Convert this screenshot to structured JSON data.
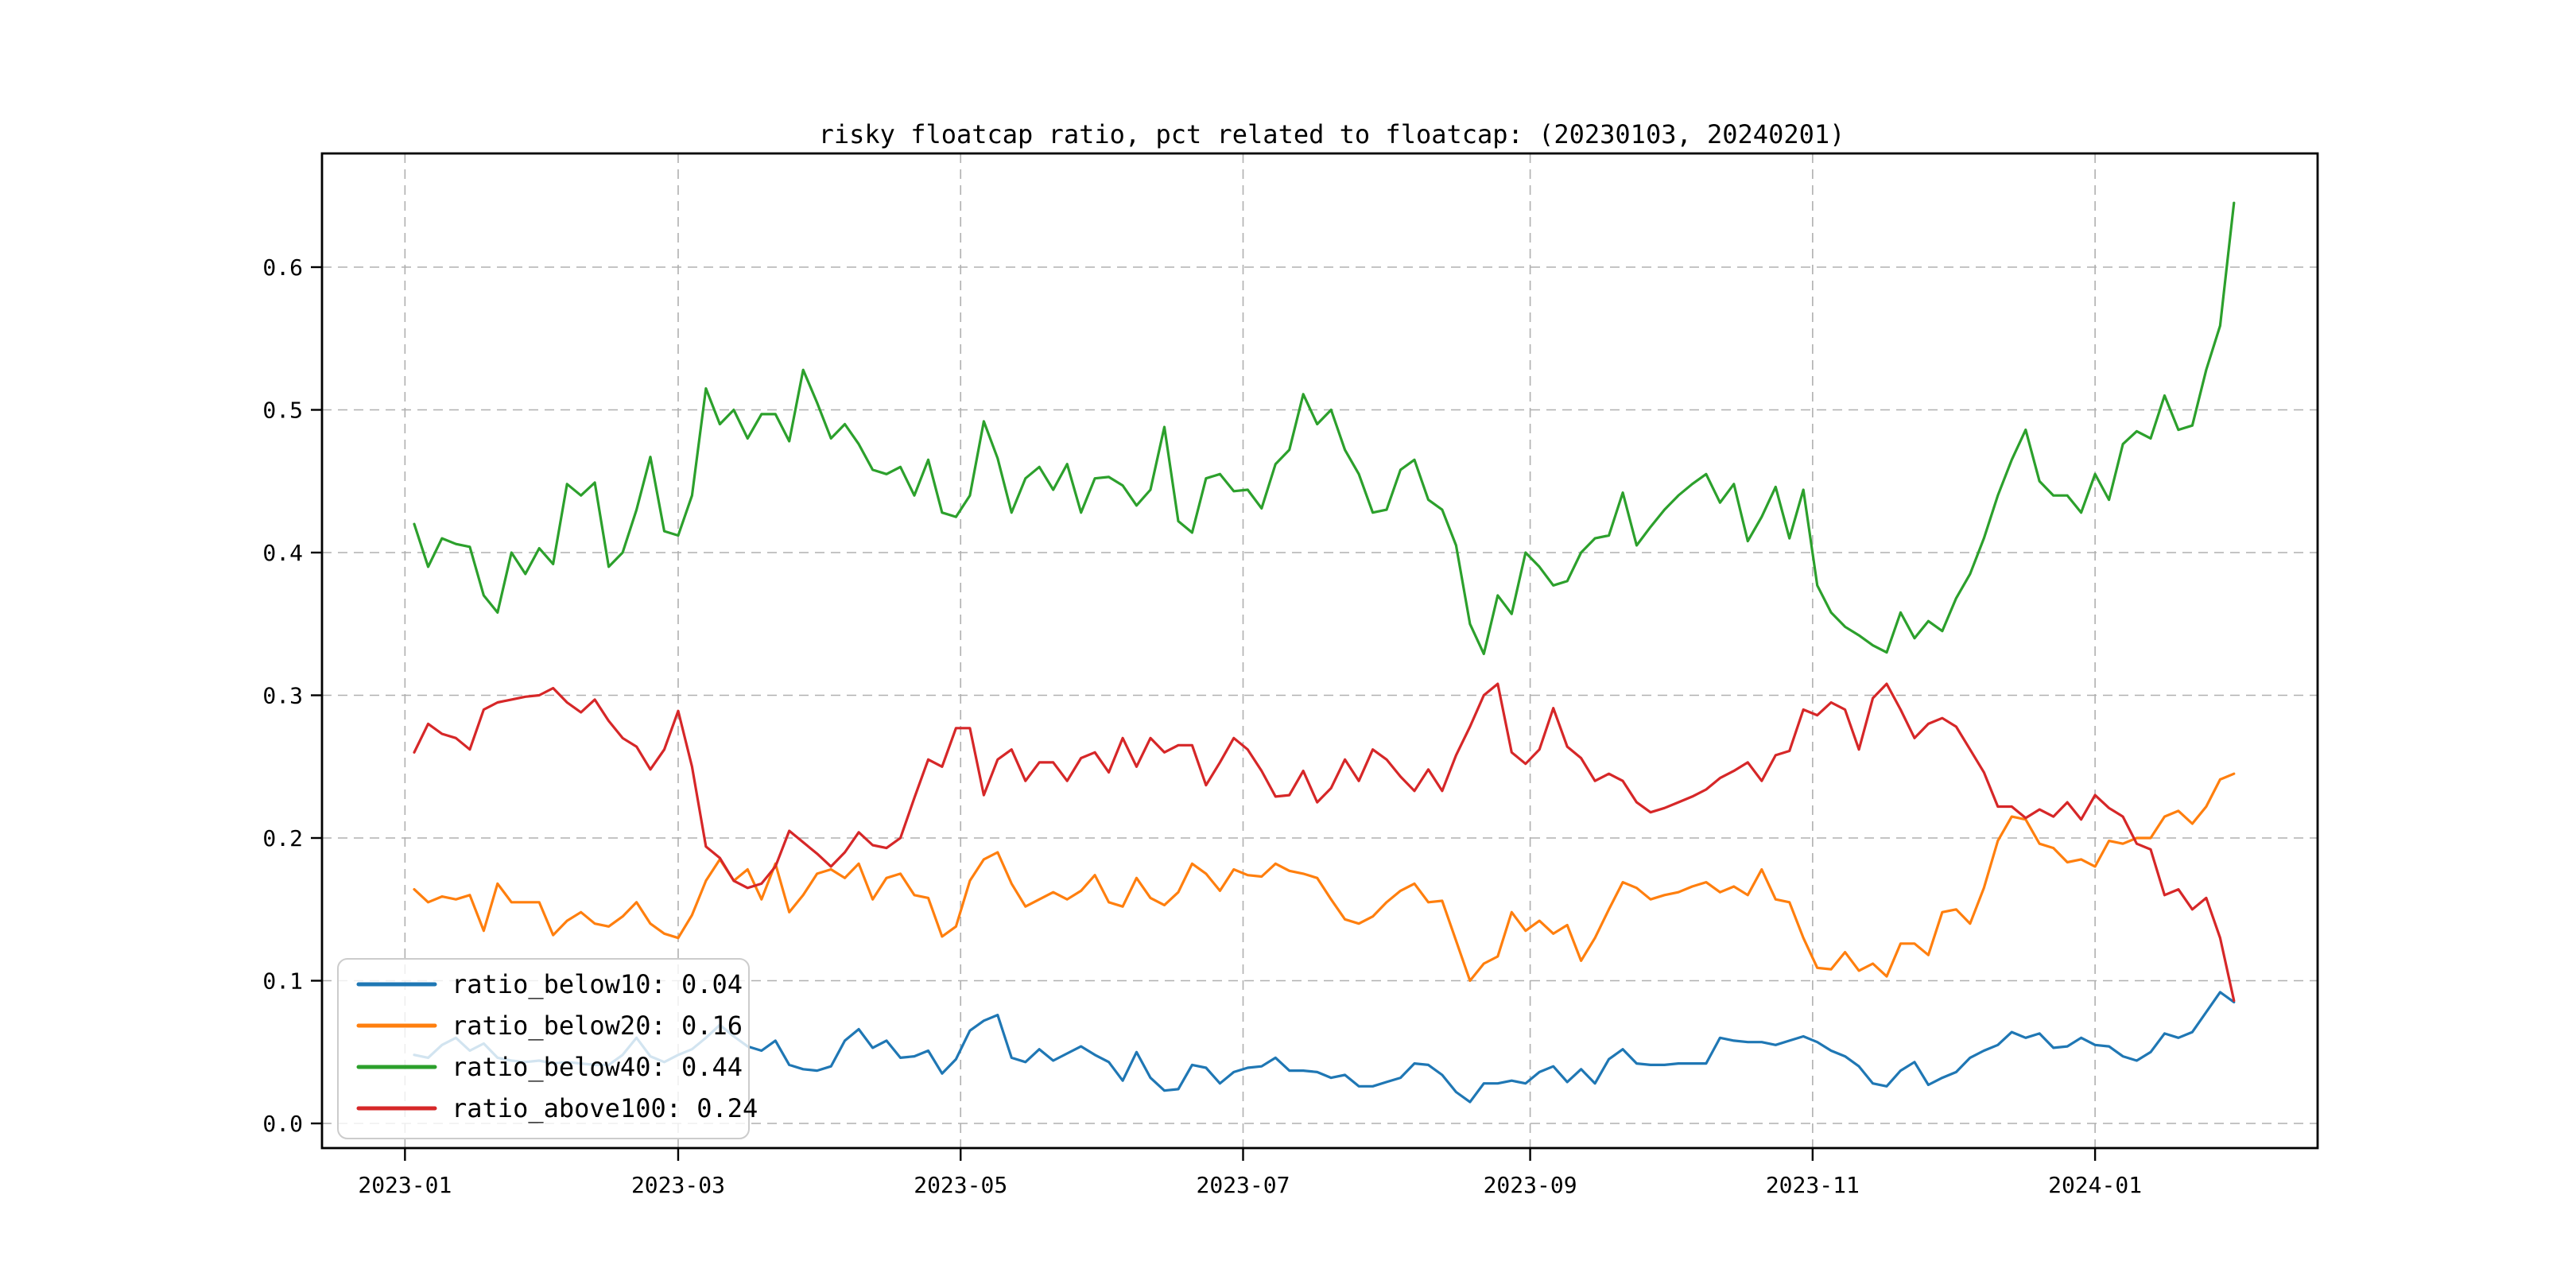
{
  "figure": {
    "background": "#ffffff"
  },
  "chart_data": {
    "type": "line",
    "title": "risky floatcap ratio, pct related to floatcap: (20230103, 20240201)",
    "grid": true,
    "grid_style": "dashed",
    "grid_color": "#b0b0b0",
    "legend_position": "lower left",
    "x_axis": {
      "start_date": "2023-01-03",
      "end_date": "2024-02-01",
      "sample_step_days": 3,
      "tick_labels": [
        "2023-01",
        "2023-03",
        "2023-05",
        "2023-07",
        "2023-09",
        "2023-11",
        "2024-01"
      ],
      "tick_day_offsets": [
        -2,
        57,
        118,
        179,
        241,
        302,
        363
      ]
    },
    "y_axis": {
      "tick_labels": [
        "0.0",
        "0.1",
        "0.2",
        "0.3",
        "0.4",
        "0.5",
        "0.6"
      ],
      "tick_values": [
        0.0,
        0.1,
        0.2,
        0.3,
        0.4,
        0.5,
        0.6
      ],
      "ylim": [
        -0.017,
        0.6797
      ]
    },
    "series": [
      {
        "name": "ratio_below10",
        "legend_label": "ratio_below10: 0.04",
        "color": "#1f77b4",
        "values": [
          0.048,
          0.046,
          0.055,
          0.06,
          0.051,
          0.056,
          0.046,
          0.044,
          0.043,
          0.044,
          0.042,
          0.043,
          0.042,
          0.041,
          0.041,
          0.048,
          0.06,
          0.047,
          0.043,
          0.048,
          0.052,
          0.06,
          0.069,
          0.061,
          0.054,
          0.051,
          0.058,
          0.041,
          0.038,
          0.037,
          0.04,
          0.058,
          0.066,
          0.053,
          0.058,
          0.046,
          0.047,
          0.051,
          0.035,
          0.045,
          0.065,
          0.072,
          0.076,
          0.046,
          0.043,
          0.052,
          0.044,
          0.049,
          0.054,
          0.048,
          0.043,
          0.03,
          0.05,
          0.032,
          0.023,
          0.024,
          0.041,
          0.039,
          0.028,
          0.036,
          0.039,
          0.04,
          0.046,
          0.037,
          0.037,
          0.036,
          0.032,
          0.034,
          0.026,
          0.026,
          0.029,
          0.032,
          0.042,
          0.041,
          0.034,
          0.022,
          0.015,
          0.028,
          0.028,
          0.03,
          0.028,
          0.036,
          0.04,
          0.029,
          0.038,
          0.028,
          0.045,
          0.052,
          0.042,
          0.041,
          0.041,
          0.042,
          0.042,
          0.042,
          0.06,
          0.058,
          0.057,
          0.057,
          0.055,
          0.058,
          0.061,
          0.057,
          0.051,
          0.047,
          0.04,
          0.028,
          0.026,
          0.037,
          0.043,
          0.027,
          0.032,
          0.036,
          0.046,
          0.051,
          0.055,
          0.064,
          0.06,
          0.063,
          0.053,
          0.054,
          0.06,
          0.055,
          0.054,
          0.047,
          0.044,
          0.05,
          0.063,
          0.06,
          0.064,
          0.078,
          0.092,
          0.085
        ]
      },
      {
        "name": "ratio_below20",
        "legend_label": "ratio_below20: 0.16",
        "color": "#ff7f0e",
        "values": [
          0.164,
          0.155,
          0.159,
          0.157,
          0.16,
          0.135,
          0.168,
          0.155,
          0.155,
          0.155,
          0.132,
          0.142,
          0.148,
          0.14,
          0.138,
          0.145,
          0.155,
          0.14,
          0.133,
          0.13,
          0.146,
          0.17,
          0.185,
          0.17,
          0.178,
          0.157,
          0.182,
          0.148,
          0.16,
          0.175,
          0.178,
          0.172,
          0.182,
          0.157,
          0.172,
          0.175,
          0.16,
          0.158,
          0.131,
          0.138,
          0.17,
          0.185,
          0.19,
          0.168,
          0.152,
          0.157,
          0.162,
          0.157,
          0.163,
          0.174,
          0.155,
          0.152,
          0.172,
          0.158,
          0.153,
          0.162,
          0.182,
          0.175,
          0.163,
          0.178,
          0.174,
          0.173,
          0.182,
          0.177,
          0.175,
          0.172,
          0.157,
          0.143,
          0.14,
          0.145,
          0.155,
          0.163,
          0.168,
          0.155,
          0.156,
          0.128,
          0.1,
          0.112,
          0.117,
          0.148,
          0.135,
          0.142,
          0.133,
          0.139,
          0.114,
          0.13,
          0.15,
          0.169,
          0.165,
          0.157,
          0.16,
          0.162,
          0.166,
          0.169,
          0.162,
          0.166,
          0.16,
          0.178,
          0.157,
          0.155,
          0.13,
          0.109,
          0.108,
          0.12,
          0.107,
          0.112,
          0.103,
          0.126,
          0.126,
          0.118,
          0.148,
          0.15,
          0.14,
          0.165,
          0.198,
          0.215,
          0.213,
          0.196,
          0.193,
          0.183,
          0.185,
          0.18,
          0.198,
          0.196,
          0.2,
          0.2,
          0.215,
          0.219,
          0.21,
          0.222,
          0.241,
          0.245
        ]
      },
      {
        "name": "ratio_below40",
        "legend_label": "ratio_below40: 0.44",
        "color": "#2ca02c",
        "values": [
          0.42,
          0.39,
          0.41,
          0.406,
          0.404,
          0.37,
          0.358,
          0.4,
          0.385,
          0.403,
          0.392,
          0.448,
          0.44,
          0.449,
          0.39,
          0.4,
          0.43,
          0.467,
          0.415,
          0.412,
          0.44,
          0.515,
          0.49,
          0.5,
          0.48,
          0.497,
          0.497,
          0.478,
          0.528,
          0.505,
          0.48,
          0.49,
          0.476,
          0.458,
          0.455,
          0.46,
          0.44,
          0.465,
          0.428,
          0.425,
          0.44,
          0.492,
          0.466,
          0.428,
          0.452,
          0.46,
          0.444,
          0.462,
          0.428,
          0.452,
          0.453,
          0.447,
          0.433,
          0.444,
          0.488,
          0.422,
          0.414,
          0.452,
          0.455,
          0.443,
          0.444,
          0.431,
          0.462,
          0.472,
          0.511,
          0.49,
          0.5,
          0.472,
          0.455,
          0.428,
          0.43,
          0.458,
          0.465,
          0.437,
          0.43,
          0.405,
          0.35,
          0.329,
          0.37,
          0.357,
          0.4,
          0.39,
          0.377,
          0.38,
          0.4,
          0.41,
          0.412,
          0.442,
          0.405,
          0.418,
          0.43,
          0.44,
          0.448,
          0.455,
          0.435,
          0.448,
          0.408,
          0.425,
          0.446,
          0.41,
          0.444,
          0.377,
          0.358,
          0.348,
          0.342,
          0.335,
          0.33,
          0.358,
          0.34,
          0.352,
          0.345,
          0.368,
          0.385,
          0.41,
          0.44,
          0.465,
          0.486,
          0.45,
          0.44,
          0.44,
          0.428,
          0.455,
          0.437,
          0.476,
          0.485,
          0.48,
          0.51,
          0.486,
          0.489,
          0.528,
          0.559,
          0.645
        ]
      },
      {
        "name": "ratio_above100",
        "legend_label": "ratio_above100: 0.24",
        "color": "#d62728",
        "values": [
          0.26,
          0.28,
          0.273,
          0.27,
          0.262,
          0.29,
          0.295,
          0.297,
          0.299,
          0.3,
          0.305,
          0.295,
          0.288,
          0.297,
          0.282,
          0.27,
          0.264,
          0.248,
          0.262,
          0.289,
          0.25,
          0.194,
          0.186,
          0.17,
          0.165,
          0.168,
          0.18,
          0.205,
          0.197,
          0.189,
          0.18,
          0.19,
          0.204,
          0.195,
          0.193,
          0.2,
          0.228,
          0.255,
          0.25,
          0.277,
          0.277,
          0.23,
          0.255,
          0.262,
          0.24,
          0.253,
          0.253,
          0.24,
          0.256,
          0.26,
          0.246,
          0.27,
          0.25,
          0.27,
          0.26,
          0.265,
          0.265,
          0.237,
          0.253,
          0.27,
          0.262,
          0.247,
          0.229,
          0.23,
          0.247,
          0.225,
          0.235,
          0.255,
          0.24,
          0.262,
          0.255,
          0.243,
          0.233,
          0.248,
          0.233,
          0.258,
          0.278,
          0.3,
          0.308,
          0.26,
          0.252,
          0.262,
          0.291,
          0.264,
          0.256,
          0.24,
          0.245,
          0.24,
          0.225,
          0.218,
          0.221,
          0.225,
          0.229,
          0.234,
          0.242,
          0.247,
          0.253,
          0.24,
          0.258,
          0.261,
          0.29,
          0.286,
          0.295,
          0.29,
          0.262,
          0.298,
          0.308,
          0.29,
          0.27,
          0.28,
          0.284,
          0.278,
          0.262,
          0.246,
          0.222,
          0.222,
          0.214,
          0.22,
          0.215,
          0.225,
          0.213,
          0.23,
          0.221,
          0.215,
          0.196,
          0.192,
          0.16,
          0.164,
          0.15,
          0.158,
          0.13,
          0.086
        ]
      }
    ]
  }
}
